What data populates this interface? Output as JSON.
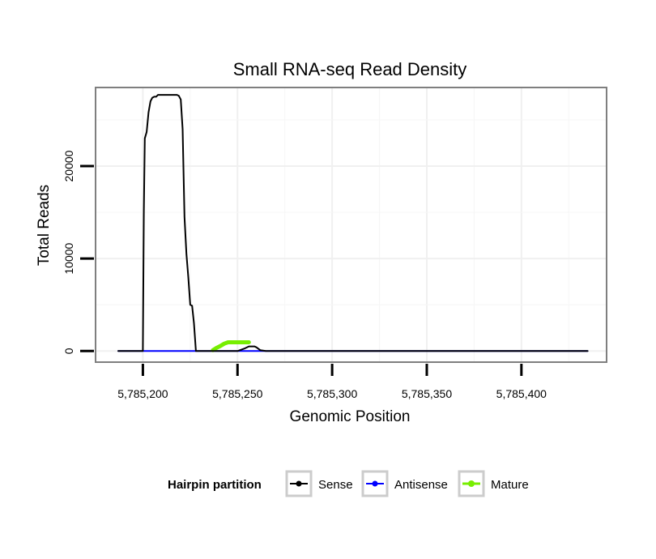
{
  "chart_data": {
    "type": "line",
    "title": "Small RNA-seq Read Density",
    "xlabel": "Genomic Position",
    "ylabel": "Total Reads",
    "xlim": [
      5785175,
      5785445
    ],
    "ylim": [
      -1200,
      28500
    ],
    "x_ticks": [
      5785200,
      5785250,
      5785300,
      5785350,
      5785400
    ],
    "x_tick_labels": [
      "5,785,200",
      "5,785,250",
      "5,785,300",
      "5,785,350",
      "5,785,400"
    ],
    "y_ticks": [
      0,
      10000,
      20000
    ],
    "y_tick_labels": [
      "0",
      "10000",
      "20000"
    ],
    "grid": true,
    "legend": {
      "title": "Hairpin partition",
      "position": "bottom",
      "entries": [
        "Sense",
        "Antisense",
        "Mature"
      ]
    },
    "series": [
      {
        "name": "Sense",
        "color": "#000000",
        "x": [
          5785187,
          5785200,
          5785200.5,
          5785201,
          5785202,
          5785203,
          5785204,
          5785205,
          5785206,
          5785207,
          5785208,
          5785212,
          5785215,
          5785218,
          5785219,
          5785220,
          5785221,
          5785222,
          5785223,
          5785224,
          5785225,
          5785226,
          5785227,
          5785228,
          5785229,
          5785230,
          5785240,
          5785250,
          5785254,
          5785256,
          5785258,
          5785259,
          5785260,
          5785262,
          5785265,
          5785435
        ],
        "y": [
          0,
          0,
          15000,
          23000,
          23700,
          25800,
          27000,
          27400,
          27500,
          27500,
          27700,
          27700,
          27700,
          27700,
          27600,
          27200,
          24000,
          14500,
          10500,
          8000,
          5000,
          4900,
          3000,
          0,
          0,
          0,
          0,
          0,
          300,
          500,
          500,
          500,
          400,
          100,
          0,
          0
        ]
      },
      {
        "name": "Antisense",
        "color": "#0000ff",
        "x": [
          5785187,
          5785435
        ],
        "y": [
          0,
          0
        ]
      },
      {
        "name": "Mature",
        "color": "#77ee00",
        "x": [
          5785237,
          5785239,
          5785241,
          5785243,
          5785245,
          5785247,
          5785249,
          5785251,
          5785253,
          5785255,
          5785256
        ],
        "y": [
          100,
          350,
          550,
          800,
          950,
          950,
          950,
          950,
          950,
          950,
          950
        ]
      }
    ]
  }
}
